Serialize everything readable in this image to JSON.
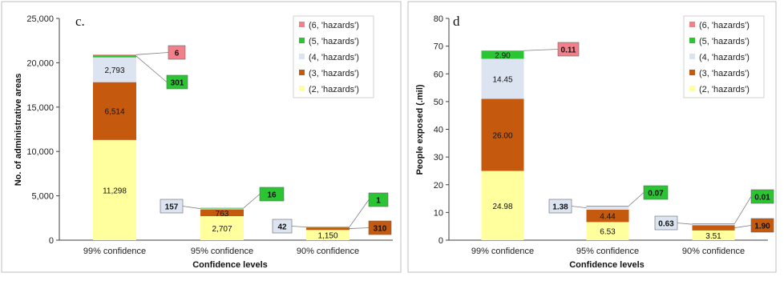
{
  "colors": {
    "h2": "#ffff9e",
    "h3": "#c55a0f",
    "h4": "#dce3f1",
    "h5": "#2bc433",
    "h6": "#f2808a"
  },
  "chart_data": [
    {
      "type": "bar",
      "stacked": true,
      "panel_label": "c.",
      "xlabel": "Confidence levels",
      "ylabel": "No. of administrative areas",
      "ylim": [
        0,
        25000
      ],
      "yticks": [
        "0",
        "5,000",
        "10,000",
        "15,000",
        "20,000",
        "25,000"
      ],
      "ytick_values": [
        0,
        5000,
        10000,
        15000,
        20000,
        25000
      ],
      "categories": [
        "99% confidence",
        "95% confidence",
        "90% confidence"
      ],
      "legend_position": "top-right",
      "series": [
        {
          "name": "(2, 'hazards')",
          "key": "h2",
          "values": [
            11298,
            2707,
            1150
          ],
          "labels": [
            "11,298",
            "2,707",
            "1,150"
          ]
        },
        {
          "name": "(3, 'hazards')",
          "key": "h3",
          "values": [
            6514,
            763,
            310
          ],
          "labels": [
            "6,514",
            "763",
            "310"
          ]
        },
        {
          "name": "(4, 'hazards')",
          "key": "h4",
          "values": [
            2793,
            157,
            42
          ],
          "labels": [
            "2,793",
            "157",
            "42"
          ]
        },
        {
          "name": "(5, 'hazards')",
          "key": "h5",
          "values": [
            301,
            16,
            1
          ],
          "labels": [
            "301",
            "16",
            "1"
          ]
        },
        {
          "name": "(6, 'hazards')",
          "key": "h6",
          "values": [
            6,
            0,
            0
          ],
          "labels": [
            "6",
            "",
            ""
          ]
        }
      ]
    },
    {
      "type": "bar",
      "stacked": true,
      "panel_label": "d",
      "xlabel": "Confidence levels",
      "ylabel": "People exposed (.mil)",
      "ylim": [
        0,
        80
      ],
      "yticks": [
        "0",
        "10",
        "20",
        "30",
        "40",
        "50",
        "60",
        "70",
        "80"
      ],
      "ytick_values": [
        0,
        10,
        20,
        30,
        40,
        50,
        60,
        70,
        80
      ],
      "categories": [
        "99% confidence",
        "95% confidence",
        "90% confidence"
      ],
      "legend_position": "top-right",
      "series": [
        {
          "name": "(2, 'hazards')",
          "key": "h2",
          "values": [
            24.98,
            6.53,
            3.51
          ],
          "labels": [
            "24.98",
            "6.53",
            "3.51"
          ]
        },
        {
          "name": "(3, 'hazards')",
          "key": "h3",
          "values": [
            26.0,
            4.44,
            1.9
          ],
          "labels": [
            "26.00",
            "4.44",
            "1.90"
          ]
        },
        {
          "name": "(4, 'hazards')",
          "key": "h4",
          "values": [
            14.45,
            1.38,
            0.63
          ],
          "labels": [
            "14.45",
            "1.38",
            "0.63"
          ]
        },
        {
          "name": "(5, 'hazards')",
          "key": "h5",
          "values": [
            2.9,
            0.07,
            0.01
          ],
          "labels": [
            "2.90",
            "0.07",
            "0.01"
          ]
        },
        {
          "name": "(6, 'hazards')",
          "key": "h6",
          "values": [
            0.11,
            0,
            0
          ],
          "labels": [
            "0.11",
            "",
            ""
          ]
        }
      ]
    }
  ]
}
